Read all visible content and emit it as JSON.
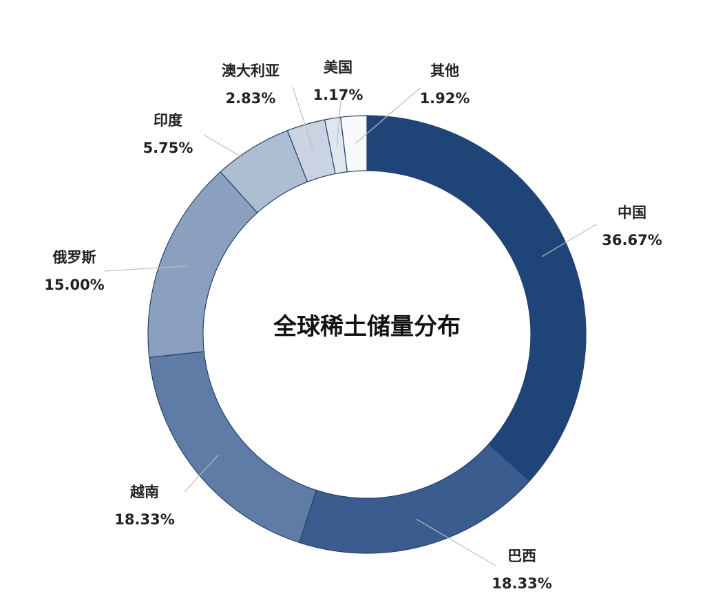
{
  "chart_data": {
    "type": "pie",
    "title": "全球稀土储量分布",
    "slices": [
      {
        "name": "中国",
        "label": "36.67%",
        "value": 36.67,
        "color": "#1f4478"
      },
      {
        "name": "巴西",
        "label": "18.33%",
        "value": 18.33,
        "color": "#3a5c8e"
      },
      {
        "name": "越南",
        "label": "18.33%",
        "value": 18.33,
        "color": "#5f7ca6"
      },
      {
        "name": "俄罗斯",
        "label": "15.00%",
        "value": 15.0,
        "color": "#8ba0bf"
      },
      {
        "name": "印度",
        "label": "5.75%",
        "value": 5.75,
        "color": "#adbdd2"
      },
      {
        "name": "澳大利亚",
        "label": "2.83%",
        "value": 2.83,
        "color": "#c9d3e1"
      },
      {
        "name": "美国",
        "label": "1.17%",
        "value": 1.17,
        "color": "#dfe6ef"
      },
      {
        "name": "其他",
        "label": "1.92%",
        "value": 1.92,
        "color": "#f7f9fc"
      }
    ]
  }
}
